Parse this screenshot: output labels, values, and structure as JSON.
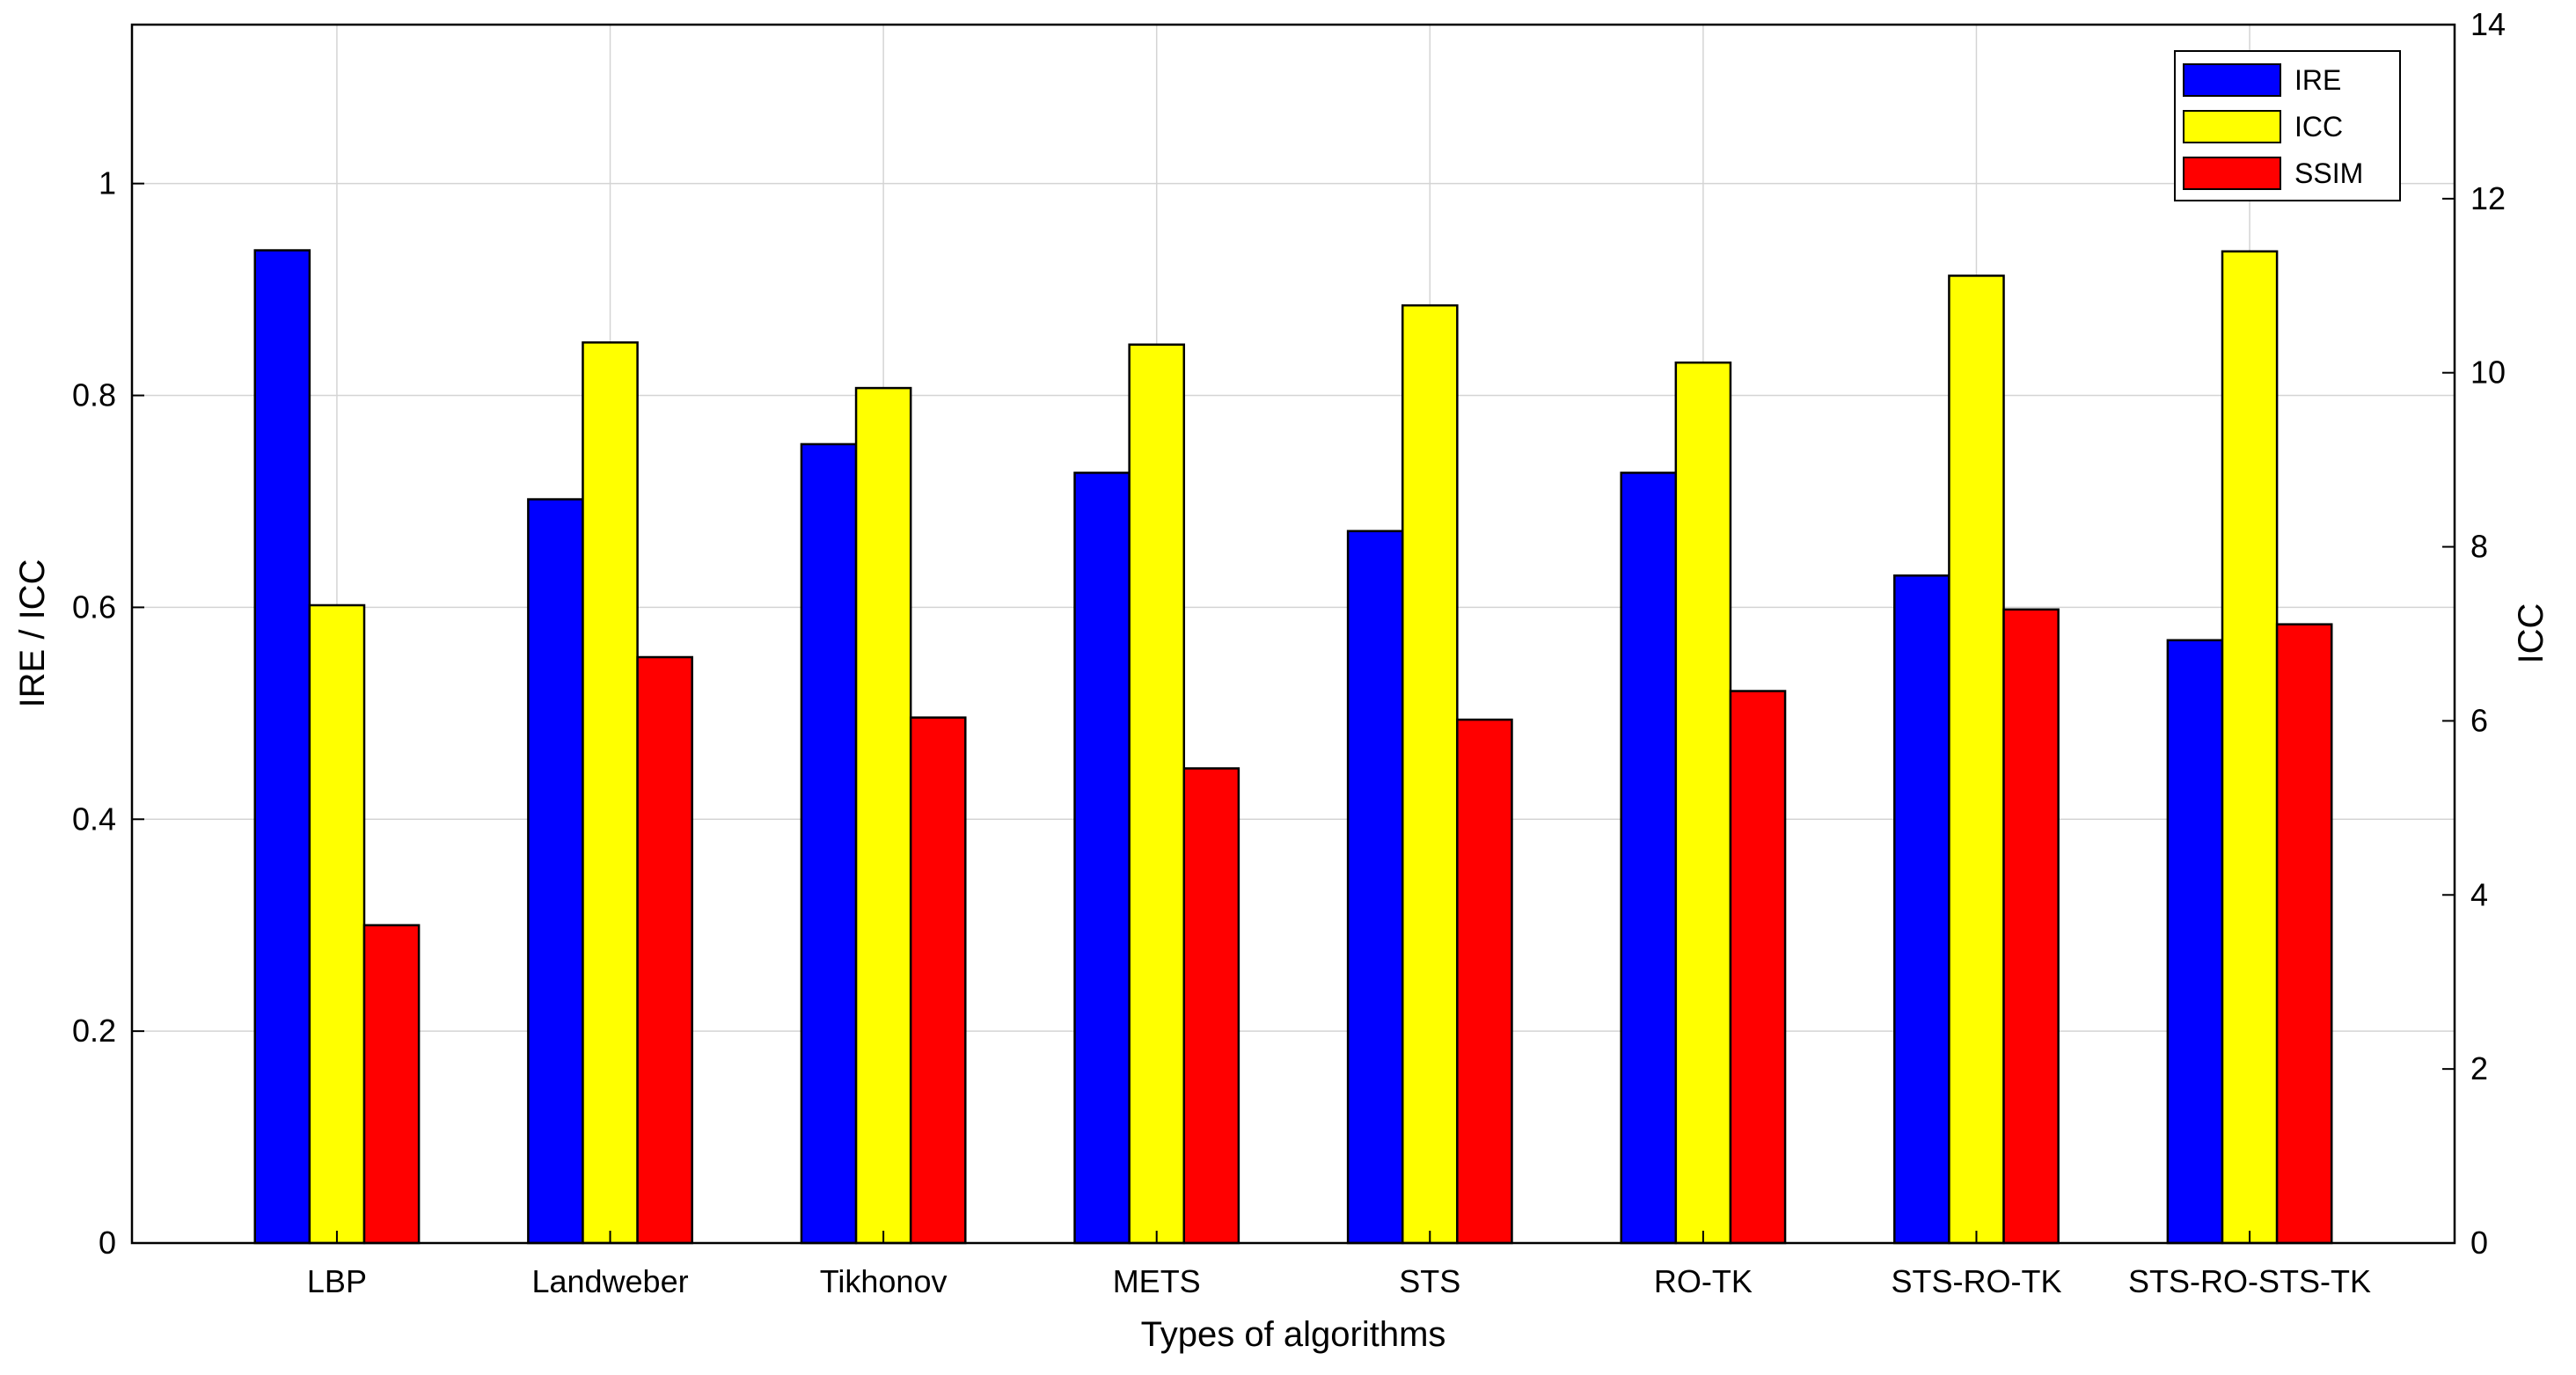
{
  "chart_data": {
    "type": "bar",
    "categories": [
      "LBP",
      "Landweber",
      "Tikhonov",
      "METS",
      "STS",
      "RO-TK",
      "STS-RO-TK",
      "STS-RO-STS-TK"
    ],
    "series": [
      {
        "name": "IRE",
        "color": "#0000ff",
        "values": [
          0.937,
          0.702,
          0.754,
          0.727,
          0.672,
          0.727,
          0.63,
          0.569
        ]
      },
      {
        "name": "ICC",
        "color": "#ffff00",
        "values": [
          0.602,
          0.85,
          0.807,
          0.848,
          0.885,
          0.831,
          0.913,
          0.936
        ]
      },
      {
        "name": "SSIM",
        "color": "#ff0000",
        "values": [
          0.3,
          0.553,
          0.496,
          0.448,
          0.494,
          0.521,
          0.598,
          0.584
        ]
      }
    ],
    "xlabel": "Types of algorithms",
    "ylabel": "IRE / ICC",
    "ylabel_right": "ICC",
    "ylim": [
      0,
      1.15
    ],
    "ylim_right": [
      0,
      14
    ],
    "yticks": [
      "0",
      "0.2",
      "0.4",
      "0.6",
      "0.8",
      "1"
    ],
    "yticks_right": [
      "0",
      "2",
      "4",
      "6",
      "8",
      "10",
      "12",
      "14"
    ],
    "grid": true,
    "legend_position": "top-right"
  }
}
